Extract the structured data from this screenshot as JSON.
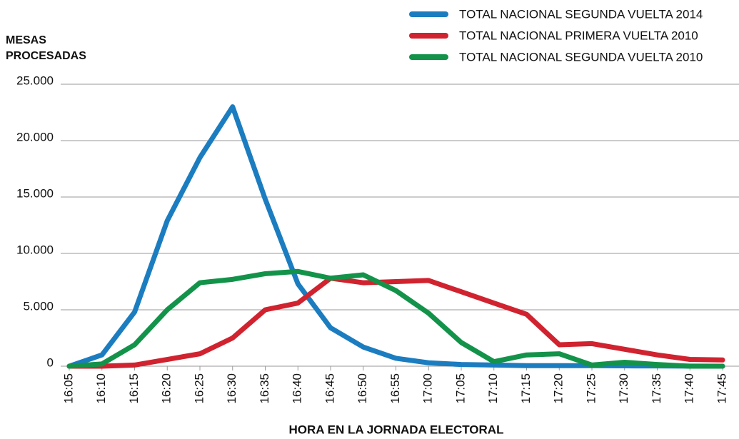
{
  "chart_data": {
    "type": "line",
    "y_label": "MESAS PROCESADAS",
    "x_label": "HORA EN LA JORNADA ELECTORAL",
    "categories": [
      "16:05",
      "16:10",
      "16:15",
      "16:20",
      "16:25",
      "16:30",
      "16:35",
      "16:40",
      "16:45",
      "16:50",
      "16:55",
      "17:00",
      "17:05",
      "17:10",
      "17:15",
      "17:20",
      "17:25",
      "17:30",
      "17:35",
      "17:40",
      "17:45"
    ],
    "series": [
      {
        "name": "TOTAL NACIONAL SEGUNDA VUELTA 2014",
        "color": "#1b7dc0",
        "values": [
          0,
          1000,
          4800,
          12900,
          18500,
          23000,
          14800,
          7300,
          3400,
          1700,
          700,
          300,
          150,
          100,
          50,
          50,
          50,
          30,
          20,
          10,
          0
        ]
      },
      {
        "name": "TOTAL NACIONAL PRIMERA VUELTA 2010",
        "color": "#d0232f",
        "values": [
          0,
          0,
          100,
          600,
          1100,
          2500,
          5000,
          5600,
          7800,
          7400,
          7500,
          7600,
          6600,
          5600,
          4600,
          1900,
          2000,
          1500,
          1000,
          600,
          550
        ]
      },
      {
        "name": "TOTAL NACIONAL SEGUNDA VUELTA 2010",
        "color": "#13934a",
        "values": [
          0,
          200,
          1900,
          5000,
          7400,
          7700,
          8200,
          8400,
          7800,
          8100,
          6700,
          4700,
          2100,
          400,
          1000,
          1100,
          100,
          350,
          150,
          0,
          0
        ]
      }
    ],
    "ylim": [
      0,
      25000
    ],
    "yticks": [
      0,
      {
        "value": 5000,
        "label": "5.000"
      },
      {
        "value": 10000,
        "label": "10.000"
      },
      {
        "value": 15000,
        "label": "15.000"
      },
      {
        "value": 20000,
        "label": "20.000"
      },
      {
        "value": 25000,
        "label": "25.000"
      }
    ],
    "grid": true,
    "legend": "top-right"
  }
}
